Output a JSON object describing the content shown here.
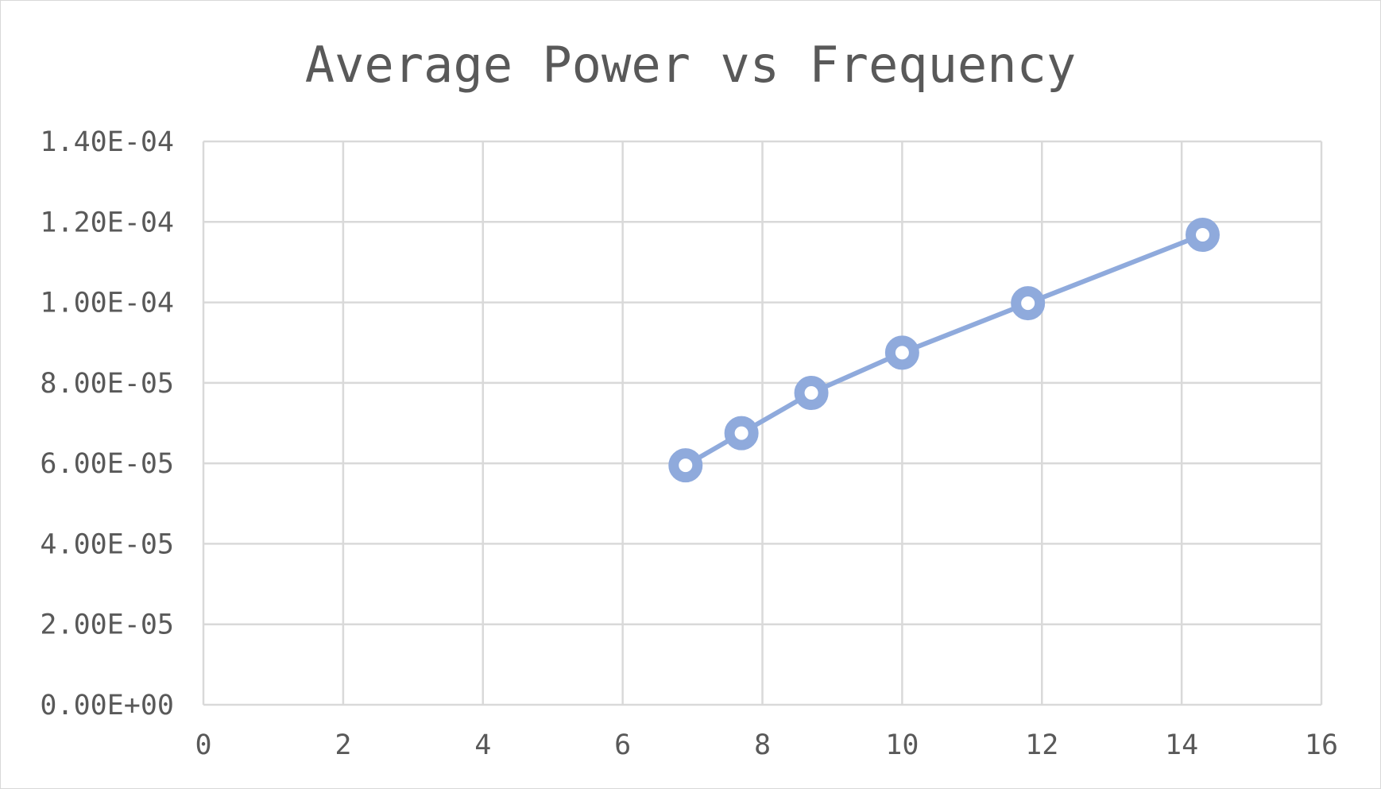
{
  "chart_data": {
    "type": "scatter",
    "title": "Average Power vs Frequency",
    "xlabel": "",
    "ylabel": "",
    "xlim": [
      0,
      16
    ],
    "ylim": [
      0,
      0.00014
    ],
    "x_ticks": [
      {
        "value": 0,
        "label": "0"
      },
      {
        "value": 2,
        "label": "2"
      },
      {
        "value": 4,
        "label": "4"
      },
      {
        "value": 6,
        "label": "6"
      },
      {
        "value": 8,
        "label": "8"
      },
      {
        "value": 10,
        "label": "10"
      },
      {
        "value": 12,
        "label": "12"
      },
      {
        "value": 14,
        "label": "14"
      },
      {
        "value": 16,
        "label": "16"
      }
    ],
    "y_ticks": [
      {
        "value": 0,
        "label": "0.00E+00"
      },
      {
        "value": 2e-05,
        "label": "2.00E-05"
      },
      {
        "value": 4e-05,
        "label": "4.00E-05"
      },
      {
        "value": 6e-05,
        "label": "6.00E-05"
      },
      {
        "value": 8e-05,
        "label": "8.00E-05"
      },
      {
        "value": 0.0001,
        "label": "1.00E-04"
      },
      {
        "value": 0.00012,
        "label": "1.20E-04"
      },
      {
        "value": 0.00014,
        "label": "1.40E-04"
      }
    ],
    "grid": true,
    "legend": "none",
    "series": [
      {
        "color": "#8faadc",
        "lines": true,
        "markers": "circle",
        "points": [
          {
            "x": 6.9,
            "y": 5.95e-05
          },
          {
            "x": 7.7,
            "y": 6.75e-05
          },
          {
            "x": 8.7,
            "y": 7.75e-05
          },
          {
            "x": 10.0,
            "y": 8.75e-05
          },
          {
            "x": 11.8,
            "y": 9.98e-05
          },
          {
            "x": 14.3,
            "y": 0.0001168
          }
        ]
      }
    ]
  }
}
